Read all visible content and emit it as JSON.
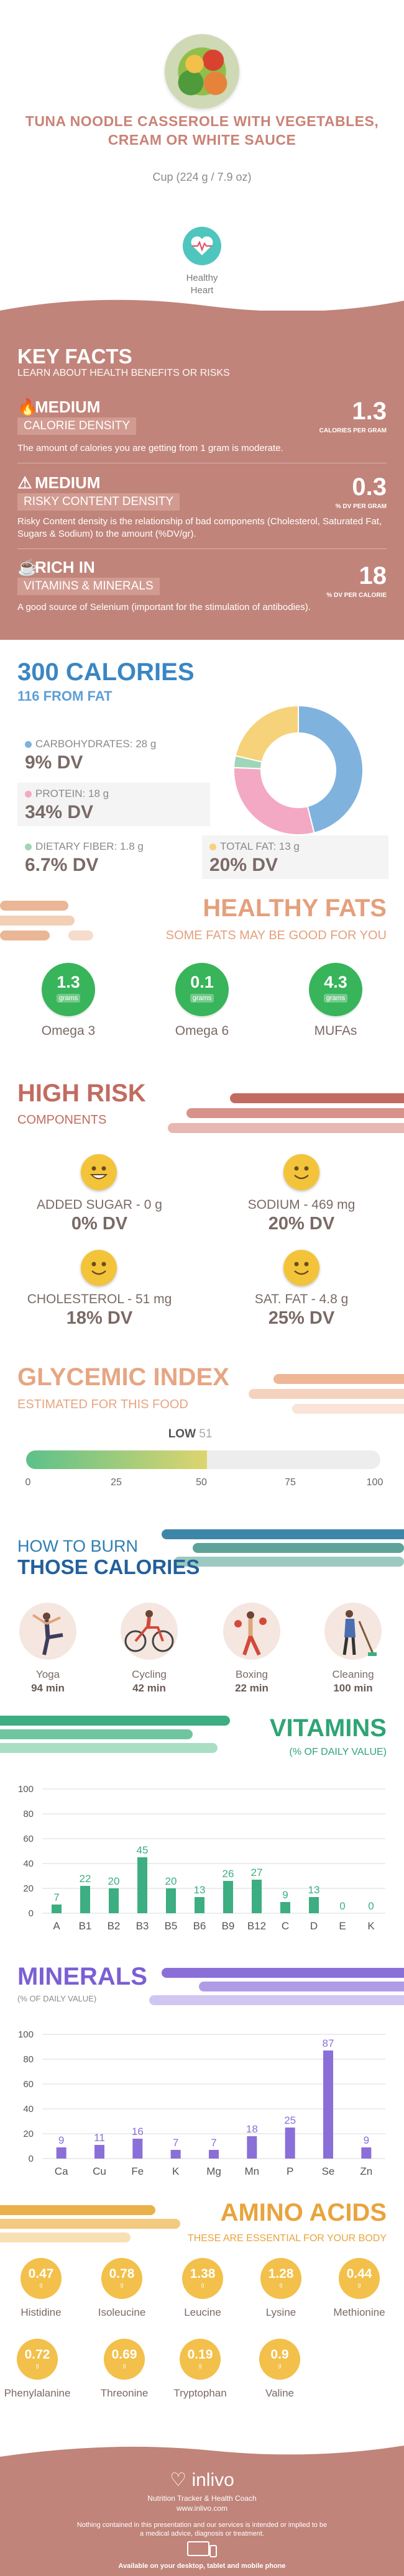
{
  "header": {
    "title": "TUNA NOODLE CASSEROLE WITH VEGETABLES, CREAM OR WHITE SAUCE",
    "serving": "Cup (224 g / 7.9 oz)",
    "badge_label_1": "Healthy",
    "badge_label_2": "Heart"
  },
  "key_facts": {
    "title": "KEY FACTS",
    "subtitle": "LEARN ABOUT HEALTH BENEFITS OR RISKS",
    "items": [
      {
        "level": "MEDIUM",
        "category": "CALORIE DENSITY",
        "value": "1.3",
        "unit": "CALORIES PER GRAM",
        "desc": "The amount of calories you are getting from 1 gram is moderate.",
        "icon": "flame-icon"
      },
      {
        "level": "MEDIUM",
        "category": "RISKY CONTENT DENSITY",
        "value": "0.3",
        "unit": "% DV PER GRAM",
        "desc": "Risky Content density is the relationship of bad components (Cholesterol, Saturated Fat, Sugars & Sodium) to the amount (%DV/gr).",
        "icon": "warning-icon"
      },
      {
        "level": "RICH  IN",
        "category": "VITAMINS & MINERALS",
        "value": "18",
        "unit": "% DV PER CALORIE",
        "desc": "A good source of Selenium (important for the stimulation of antibodies).",
        "icon": "cup-icon"
      }
    ]
  },
  "calories": {
    "title": "300 CALORIES",
    "subtitle": "116 FROM FAT",
    "carbs_label": "CARBOHYDRATES: 28 g",
    "carbs_dv": "9% DV",
    "protein_label": "PROTEIN: 18 g",
    "protein_dv": "34% DV",
    "fiber_label": "DIETARY FIBER: 1.8 g",
    "fiber_dv": "6.7% DV",
    "fat_label": "TOTAL FAT: 13 g",
    "fat_dv": "20% DV",
    "colors": {
      "carbs": "#7fb3de",
      "protein": "#f3a9c3",
      "fiber": "#9fd5b8",
      "fat": "#f6d27a"
    }
  },
  "chart_data": [
    {
      "type": "pie",
      "categories": [
        "Carbohydrates",
        "Protein",
        "Dietary Fiber",
        "Total Fat"
      ],
      "values": [
        28,
        18,
        1.8,
        13
      ]
    },
    {
      "type": "bar",
      "title": "VITAMINS",
      "subtitle": "(% OF DAILY VALUE)",
      "categories": [
        "A",
        "B1",
        "B2",
        "B3",
        "B5",
        "B6",
        "B9",
        "B12",
        "C",
        "D",
        "E",
        "K"
      ],
      "values": [
        7,
        22,
        20,
        45,
        20,
        13,
        26,
        27,
        9,
        13,
        0,
        0
      ],
      "ylim": [
        0,
        100
      ],
      "yticks": [
        "0",
        "20",
        "40",
        "60",
        "80",
        "100"
      ],
      "color": "#3cae82"
    },
    {
      "type": "bar",
      "title": "MINERALS",
      "subtitle": "(% OF DAILY VALUE)",
      "categories": [
        "Ca",
        "Cu",
        "Fe",
        "K",
        "Mg",
        "Mn",
        "P",
        "Se",
        "Zn"
      ],
      "values": [
        9,
        11,
        16,
        7,
        7,
        18,
        25,
        87,
        9
      ],
      "ylim": [
        0,
        100
      ],
      "yticks": [
        "0",
        "20",
        "40",
        "60",
        "80",
        "100"
      ],
      "color": "#8b6fd8"
    }
  ],
  "healthy_fats": {
    "title": "HEALTHY FATS",
    "subtitle": "SOME FATS MAY BE GOOD FOR YOU",
    "items": [
      {
        "value": "1.3",
        "unit": "grams",
        "label": "Omega 3"
      },
      {
        "value": "0.1",
        "unit": "grams",
        "label": "Omega 6"
      },
      {
        "value": "4.3",
        "unit": "grams",
        "label": "MUFAs"
      }
    ]
  },
  "high_risk": {
    "title": "HIGH RISK",
    "subtitle": "COMPONENTS",
    "items": [
      {
        "label": "ADDED SUGAR - 0 g",
        "dv": "0% DV"
      },
      {
        "label": "SODIUM - 469 mg",
        "dv": "20% DV"
      },
      {
        "label": "CHOLESTEROL - 51 mg",
        "dv": "18% DV"
      },
      {
        "label": "SAT. FAT - 4.8 g",
        "dv": "25% DV"
      }
    ]
  },
  "glycemic": {
    "title": "GLYCEMIC INDEX",
    "subtitle": "ESTIMATED FOR THIS FOOD",
    "level": "LOW",
    "value": "51",
    "value_num": 51,
    "ticks": [
      "0",
      "25",
      "50",
      "75",
      "100"
    ]
  },
  "burn": {
    "title_1": "HOW TO BURN",
    "title_2": "THOSE CALORIES",
    "activities": [
      {
        "name": "Yoga",
        "minutes": "94 min",
        "icon": "yoga-icon"
      },
      {
        "name": "Cycling",
        "minutes": "42 min",
        "icon": "cycling-icon"
      },
      {
        "name": "Boxing",
        "minutes": "22 min",
        "icon": "boxing-icon"
      },
      {
        "name": "Cleaning",
        "minutes": "100 min",
        "icon": "cleaning-icon"
      }
    ]
  },
  "amino": {
    "title": "AMINO ACIDS",
    "subtitle": "THESE ARE ESSENTIAL FOR YOUR BODY",
    "unit": "g",
    "items": [
      {
        "value": "0.47",
        "name": "Histidine"
      },
      {
        "value": "0.78",
        "name": "Isoleucine"
      },
      {
        "value": "1.38",
        "name": "Leucine"
      },
      {
        "value": "1.28",
        "name": "Lysine"
      },
      {
        "value": "0.44",
        "name": "Methionine"
      },
      {
        "value": "0.72",
        "name": "Phenylalanine"
      },
      {
        "value": "0.69",
        "name": "Threonine"
      },
      {
        "value": "0.19",
        "name": "Tryptophan"
      },
      {
        "value": "0.9",
        "name": "Valine"
      }
    ]
  },
  "footer": {
    "brand": "inlivo",
    "tagline": "Nutrition Tracker & Health Coach",
    "url": "www.inlivo.com",
    "disclaimer": "Nothing contained in this presentation and our services is intended or implied to be a medical advice, diagnosis or treatment.",
    "available": "Available on your desktop, tablet and mobile phone"
  }
}
